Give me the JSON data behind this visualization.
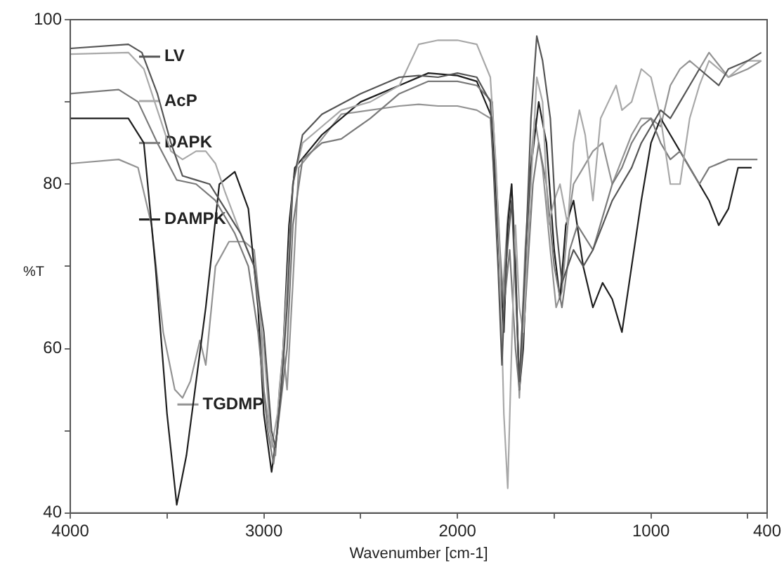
{
  "chart_data": {
    "type": "line",
    "xlabel": "Wavenumber [cm-1]",
    "ylabel": "%T",
    "xlim": [
      4000,
      400
    ],
    "ylim": [
      40,
      100
    ],
    "xticks": [
      4000,
      {
        "value": 3500,
        "label": null
      },
      3000,
      {
        "value": 2500,
        "label": null
      },
      2000,
      {
        "value": 1500,
        "label": null
      },
      1000,
      {
        "value": 500,
        "label": null
      },
      400
    ],
    "yticks": [
      40,
      {
        "value": 50,
        "label": null
      },
      60,
      {
        "value": 70,
        "label": null
      },
      80,
      {
        "value": 90,
        "label": null
      },
      100
    ],
    "grid": false,
    "legend": "top left",
    "marker": "none",
    "line_style": "solid",
    "series": [
      {
        "name": "LV",
        "color": "#555555",
        "x": [
          4000,
          3700,
          3630,
          3550,
          3480,
          3420,
          3350,
          3280,
          3200,
          3120,
          3050,
          3000,
          2960,
          2940,
          2910,
          2880,
          2850,
          2800,
          2700,
          2500,
          2300,
          2200,
          2100,
          2000,
          1900,
          1830,
          1790,
          1770,
          1750,
          1720,
          1700,
          1680,
          1650,
          1620,
          1590,
          1560,
          1520,
          1490,
          1460,
          1430,
          1400,
          1350,
          1300,
          1250,
          1200,
          1150,
          1100,
          1050,
          1000,
          950,
          900,
          850,
          800,
          750,
          700,
          650,
          600,
          500,
          430
        ],
        "values": [
          96.5,
          97,
          96,
          91,
          85,
          81,
          80.5,
          80,
          77,
          74,
          70,
          62,
          50,
          48,
          55,
          65,
          80,
          86,
          88.5,
          91,
          93,
          93.2,
          93,
          93.5,
          93,
          90,
          70,
          58,
          70,
          78,
          68,
          56,
          70,
          88,
          98,
          95,
          88,
          75,
          68,
          70,
          72,
          70,
          72,
          75,
          78,
          80,
          82,
          85,
          87,
          89,
          88,
          90,
          92,
          94,
          93,
          92,
          94,
          95,
          96
        ]
      },
      {
        "name": "AcP",
        "color": "#a8a8a8",
        "x": [
          4000,
          3700,
          3620,
          3550,
          3480,
          3420,
          3350,
          3300,
          3250,
          3200,
          3120,
          3050,
          3000,
          2960,
          2930,
          2900,
          2870,
          2850,
          2800,
          2700,
          2600,
          2450,
          2300,
          2200,
          2100,
          2000,
          1900,
          1830,
          1800,
          1780,
          1760,
          1740,
          1720,
          1700,
          1680,
          1660,
          1620,
          1590,
          1560,
          1530,
          1500,
          1470,
          1430,
          1400,
          1370,
          1340,
          1300,
          1260,
          1220,
          1180,
          1150,
          1100,
          1050,
          1000,
          950,
          900,
          850,
          800,
          750,
          700,
          650,
          600,
          500,
          430
        ],
        "values": [
          95.8,
          96,
          94,
          89,
          84,
          83,
          84,
          84,
          82.5,
          79,
          74,
          70,
          60,
          48,
          52,
          60,
          72,
          80,
          85,
          87,
          89,
          90,
          92,
          97,
          97.5,
          97.5,
          97,
          93,
          82,
          70,
          52,
          43,
          60,
          75,
          65,
          62,
          80,
          93,
          90,
          75,
          78,
          80,
          75,
          85,
          89,
          86,
          78,
          88,
          90,
          92,
          89,
          90,
          94,
          93,
          88,
          80,
          80,
          88,
          92,
          95,
          94,
          93,
          95,
          95
        ]
      },
      {
        "name": "DAPK",
        "color": "#7a7a7a",
        "x": [
          4000,
          3750,
          3650,
          3550,
          3450,
          3350,
          3250,
          3150,
          3080,
          3030,
          2980,
          2950,
          2920,
          2880,
          2850,
          2800,
          2700,
          2600,
          2450,
          2300,
          2150,
          2000,
          1900,
          1820,
          1780,
          1760,
          1730,
          1700,
          1680,
          1650,
          1610,
          1580,
          1540,
          1500,
          1460,
          1420,
          1380,
          1300,
          1250,
          1200,
          1150,
          1100,
          1050,
          1000,
          950,
          900,
          850,
          800,
          750,
          700,
          600,
          500,
          450
        ],
        "values": [
          91,
          91.5,
          90,
          85,
          80.5,
          80,
          78,
          74,
          70,
          62,
          50,
          46,
          52,
          60,
          75,
          83,
          85,
          85.5,
          88,
          91,
          92.5,
          92.5,
          92,
          90,
          72,
          65,
          72,
          60,
          55,
          65,
          80,
          85,
          80,
          70,
          65,
          72,
          75,
          72,
          76,
          80,
          82,
          85,
          87,
          88,
          85,
          83,
          84,
          82,
          80,
          82,
          83,
          83,
          83
        ]
      },
      {
        "name": "DAMPK",
        "color": "#1e1e1e",
        "x": [
          4000,
          3700,
          3620,
          3560,
          3500,
          3450,
          3400,
          3300,
          3230,
          3150,
          3080,
          3030,
          3000,
          2960,
          2930,
          2900,
          2870,
          2840,
          2700,
          2500,
          2300,
          2150,
          2000,
          1900,
          1820,
          1780,
          1760,
          1740,
          1720,
          1700,
          1680,
          1660,
          1620,
          1580,
          1540,
          1500,
          1470,
          1440,
          1400,
          1350,
          1300,
          1250,
          1200,
          1150,
          1100,
          1050,
          1000,
          950,
          900,
          850,
          800,
          700,
          650,
          600,
          550,
          480
        ],
        "values": [
          88,
          88,
          85,
          70,
          52,
          41,
          47,
          65,
          80,
          81.5,
          77,
          65,
          52,
          45,
          50,
          60,
          75,
          82,
          86,
          90,
          92,
          93.5,
          93.2,
          92.5,
          88,
          70,
          62,
          75,
          80,
          70,
          55,
          60,
          82,
          90,
          85,
          72,
          66,
          75,
          78,
          70,
          65,
          68,
          66,
          62,
          70,
          78,
          85,
          88,
          86,
          84,
          82,
          78,
          75,
          77,
          82,
          82
        ]
      },
      {
        "name": "TGDMP",
        "color": "#939393",
        "x": [
          4000,
          3750,
          3650,
          3580,
          3520,
          3460,
          3420,
          3380,
          3330,
          3300,
          3250,
          3180,
          3100,
          3050,
          3020,
          3000,
          2970,
          2940,
          2920,
          2900,
          2880,
          2850,
          2820,
          2750,
          2600,
          2450,
          2300,
          2200,
          2100,
          2000,
          1900,
          1830,
          1790,
          1770,
          1740,
          1720,
          1700,
          1680,
          1650,
          1620,
          1600,
          1560,
          1520,
          1490,
          1460,
          1430,
          1400,
          1350,
          1300,
          1250,
          1200,
          1150,
          1100,
          1050,
          1000,
          950,
          900,
          850,
          800,
          750,
          700,
          600,
          500,
          430
        ],
        "values": [
          82.5,
          83,
          82,
          75,
          62,
          55,
          54,
          56,
          61,
          58,
          70,
          73,
          73,
          72,
          65,
          55,
          50,
          47,
          55,
          60,
          55,
          68,
          82,
          84,
          88.5,
          89,
          89.5,
          89.7,
          89.5,
          89.5,
          89,
          88,
          74,
          65,
          76,
          80,
          70,
          54,
          72,
          83,
          88,
          82,
          72,
          65,
          67,
          75,
          80,
          82,
          84,
          85,
          80,
          83,
          86,
          88,
          88,
          87,
          92,
          94,
          95,
          94,
          96,
          93,
          94,
          95
        ]
      }
    ]
  }
}
